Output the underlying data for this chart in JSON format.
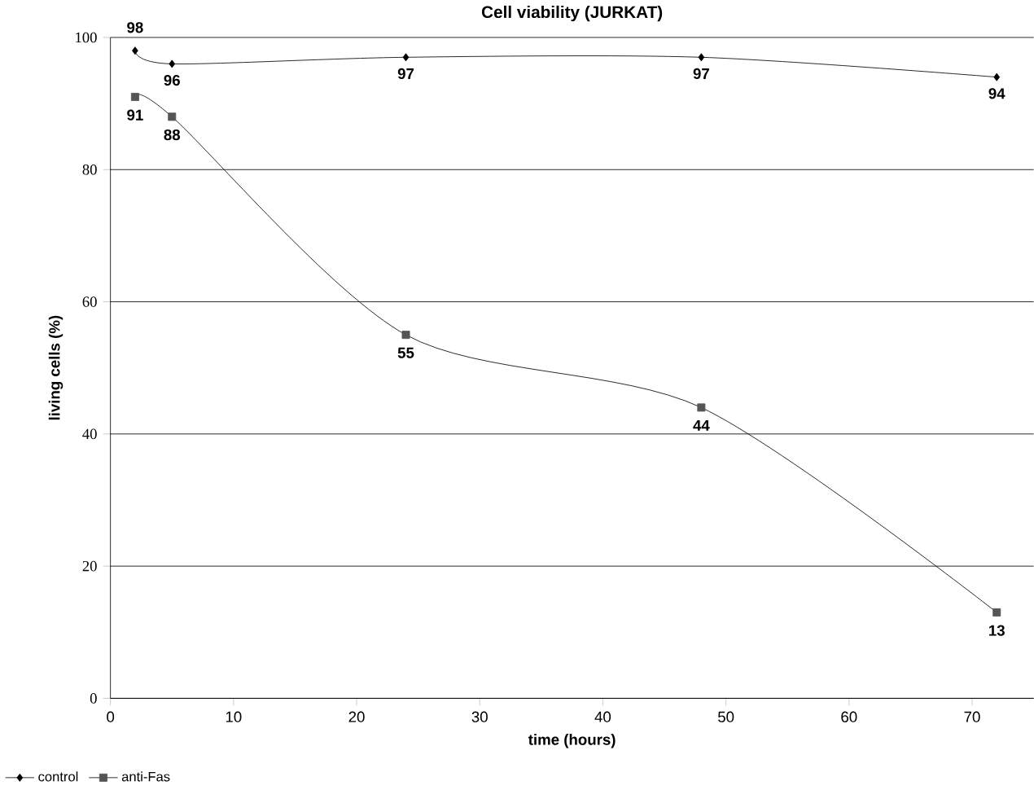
{
  "chart_data": {
    "type": "line",
    "title": "Cell viability (JURKAT)",
    "xlabel": "time (hours)",
    "ylabel": "living cells (%)",
    "series": [
      {
        "name": "control",
        "color": "#000000",
        "marker": "diamond",
        "x": [
          2,
          5,
          24,
          48,
          72
        ],
        "values": [
          98,
          96,
          97,
          97,
          94
        ]
      },
      {
        "name": "anti-Fas",
        "color": "#555555",
        "marker": "square",
        "x": [
          2,
          5,
          24,
          48,
          72
        ],
        "values": [
          91,
          88,
          55,
          44,
          13
        ]
      }
    ],
    "xlim": [
      0,
      75
    ],
    "ylim": [
      0,
      100
    ],
    "xticks": [
      0,
      10,
      20,
      30,
      40,
      50,
      60,
      70
    ],
    "yticks": [
      0,
      20,
      40,
      60,
      80,
      100
    ],
    "grid": "y",
    "legend": "bottom left",
    "data_labels": true,
    "line_style": "solid"
  }
}
